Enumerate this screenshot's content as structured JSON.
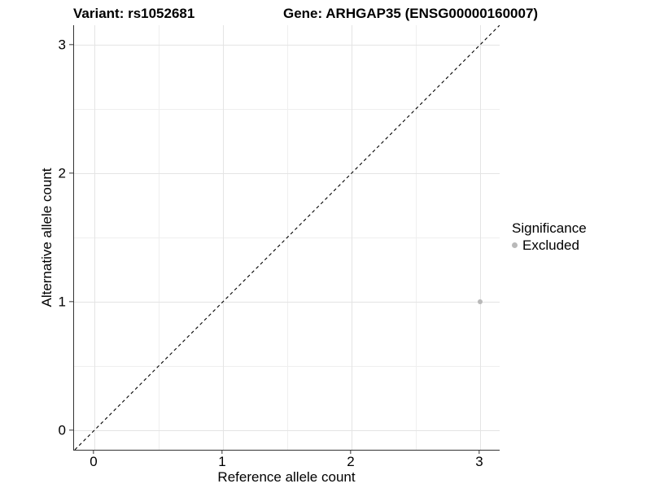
{
  "titles": {
    "variant": "Variant: rs1052681",
    "gene": "Gene: ARHGAP35 (ENSG00000160007)"
  },
  "chart_data": {
    "type": "scatter",
    "title": "Variant: rs1052681   Gene: ARHGAP35 (ENSG00000160007)",
    "xlabel": "Reference allele count",
    "ylabel": "Alternative allele count",
    "xlim": [
      -0.158,
      3.152
    ],
    "ylim": [
      -0.152,
      3.152
    ],
    "x_major_ticks": [
      0,
      1,
      2,
      3
    ],
    "y_major_ticks": [
      0,
      1,
      2,
      3
    ],
    "x_minor_ticks": [
      0.5,
      1.5,
      2.5
    ],
    "y_minor_ticks": [
      0.5,
      1.5,
      2.5
    ],
    "grid": true,
    "series": [
      {
        "name": "Excluded",
        "color": "#b9b9b9",
        "points": [
          {
            "x": 3,
            "y": 1
          }
        ]
      }
    ],
    "reference_line": {
      "kind": "identity",
      "equation": "y = x",
      "style": "dashed",
      "color": "#000000"
    },
    "legend": {
      "position": "right",
      "title": "Significance",
      "items": [
        {
          "label": "Excluded",
          "color": "#b9b9b9"
        }
      ]
    }
  },
  "colors": {
    "background": "#ffffff",
    "axis_line": "#333333",
    "grid_major": "#e4e4e4",
    "grid_minor": "#efefef",
    "text": "#000000",
    "point": "#b9b9b9"
  }
}
